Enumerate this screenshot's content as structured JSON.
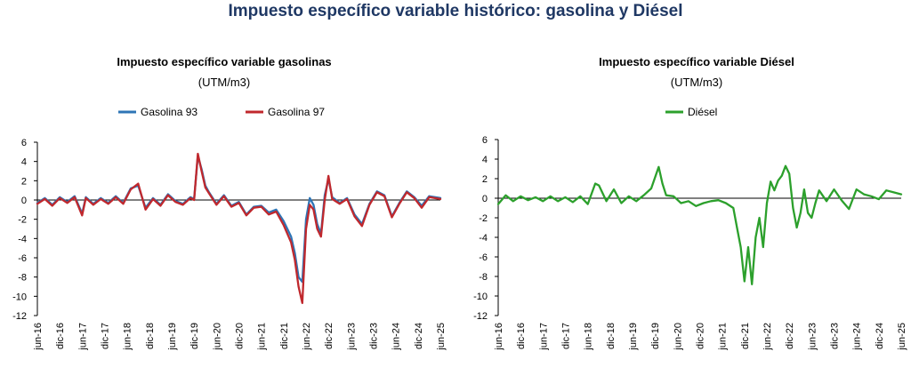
{
  "main_title": "Impuesto específico variable histórico: gasolina y Diésel",
  "colors": {
    "title": "#1f3864",
    "gasolina93": "#2e75b6",
    "gasolina97": "#c0282d",
    "diesel": "#2ca02c"
  },
  "chart_data": [
    {
      "type": "line",
      "title": "Impuesto específico variable gasolinas",
      "subtitle": "(UTM/m3)",
      "ylim": [
        -12,
        6
      ],
      "yticks": [
        6,
        4,
        2,
        0,
        -2,
        -4,
        -6,
        -8,
        -10,
        -12
      ],
      "x_range": [
        "2016-06",
        "2025-06"
      ],
      "xticks": [
        "jun-16",
        "dic-16",
        "jun-17",
        "dic-17",
        "jun-18",
        "dic-18",
        "jun-19",
        "dic-19",
        "jun-20",
        "dic-20",
        "jun-21",
        "dic-21",
        "jun-22",
        "dic-22",
        "jun-23",
        "dic-23",
        "jun-24",
        "dic-24",
        "jun-25"
      ],
      "legend": "top",
      "series": [
        {
          "name": "Gasolina 93",
          "color": "#2e75b6",
          "x": [
            "2016-06",
            "2016-08",
            "2016-10",
            "2016-12",
            "2017-02",
            "2017-04",
            "2017-06",
            "2017-07",
            "2017-09",
            "2017-11",
            "2018-01",
            "2018-03",
            "2018-05",
            "2018-07",
            "2018-09",
            "2018-11",
            "2019-01",
            "2019-03",
            "2019-05",
            "2019-07",
            "2019-09",
            "2019-11",
            "2019-12",
            "2020-01",
            "2020-02",
            "2020-03",
            "2020-04",
            "2020-06",
            "2020-08",
            "2020-10",
            "2020-12",
            "2021-02",
            "2021-04",
            "2021-06",
            "2021-08",
            "2021-10",
            "2021-12",
            "2022-02",
            "2022-03",
            "2022-04",
            "2022-05",
            "2022-06",
            "2022-07",
            "2022-08",
            "2022-09",
            "2022-10",
            "2022-11",
            "2022-12",
            "2023-01",
            "2023-03",
            "2023-05",
            "2023-07",
            "2023-09",
            "2023-11",
            "2024-01",
            "2024-03",
            "2024-05",
            "2024-07",
            "2024-09",
            "2024-11",
            "2025-01",
            "2025-03",
            "2025-06"
          ],
          "values": [
            -0.3,
            0.2,
            -0.5,
            0.3,
            -0.2,
            0.4,
            -1.4,
            0.3,
            -0.4,
            0.2,
            -0.3,
            0.4,
            -0.3,
            1.2,
            1.5,
            -0.8,
            0.2,
            -0.5,
            0.6,
            -0.1,
            -0.4,
            0.3,
            0.1,
            4.6,
            3.2,
            1.5,
            0.8,
            -0.4,
            0.5,
            -0.6,
            -0.2,
            -1.5,
            -0.7,
            -0.6,
            -1.3,
            -1.0,
            -2.2,
            -3.8,
            -5.5,
            -8.0,
            -8.5,
            -2.0,
            0.2,
            -0.5,
            -2.5,
            -3.5,
            0.5,
            2.2,
            0.3,
            -0.3,
            0.2,
            -1.5,
            -2.5,
            -0.4,
            0.9,
            0.5,
            -1.7,
            -0.3,
            0.9,
            0.3,
            -0.6,
            0.4,
            0.2
          ]
        },
        {
          "name": "Gasolina 97",
          "color": "#c0282d",
          "x": [
            "2016-06",
            "2016-08",
            "2016-10",
            "2016-12",
            "2017-02",
            "2017-04",
            "2017-06",
            "2017-07",
            "2017-09",
            "2017-11",
            "2018-01",
            "2018-03",
            "2018-05",
            "2018-07",
            "2018-09",
            "2018-11",
            "2019-01",
            "2019-03",
            "2019-05",
            "2019-07",
            "2019-09",
            "2019-11",
            "2019-12",
            "2020-01",
            "2020-02",
            "2020-03",
            "2020-04",
            "2020-06",
            "2020-08",
            "2020-10",
            "2020-12",
            "2021-02",
            "2021-04",
            "2021-06",
            "2021-08",
            "2021-10",
            "2021-12",
            "2022-02",
            "2022-03",
            "2022-04",
            "2022-05",
            "2022-06",
            "2022-07",
            "2022-08",
            "2022-09",
            "2022-10",
            "2022-11",
            "2022-12",
            "2023-01",
            "2023-03",
            "2023-05",
            "2023-07",
            "2023-09",
            "2023-11",
            "2024-01",
            "2024-03",
            "2024-05",
            "2024-07",
            "2024-09",
            "2024-11",
            "2025-01",
            "2025-03",
            "2025-06"
          ],
          "values": [
            -0.4,
            0.1,
            -0.6,
            0.2,
            -0.3,
            0.3,
            -1.6,
            0.2,
            -0.5,
            0.1,
            -0.4,
            0.3,
            -0.4,
            1.1,
            1.7,
            -1.0,
            0.1,
            -0.6,
            0.5,
            -0.2,
            -0.5,
            0.2,
            0.0,
            4.8,
            3.0,
            1.3,
            0.7,
            -0.5,
            0.4,
            -0.7,
            -0.3,
            -1.6,
            -0.8,
            -0.7,
            -1.5,
            -1.2,
            -2.6,
            -4.4,
            -6.2,
            -9.0,
            -10.7,
            -3.0,
            -0.5,
            -1.0,
            -3.0,
            -3.8,
            0.0,
            2.5,
            0.1,
            -0.4,
            0.1,
            -1.7,
            -2.7,
            -0.5,
            0.8,
            0.4,
            -1.8,
            -0.4,
            0.8,
            0.2,
            -0.8,
            0.3,
            0.1
          ]
        }
      ]
    },
    {
      "type": "line",
      "title": "Impuesto específico variable Diésel",
      "subtitle": "(UTM/m3)",
      "ylim": [
        -12,
        6
      ],
      "yticks": [
        6,
        4,
        2,
        0,
        -2,
        -4,
        -6,
        -8,
        -10,
        -12
      ],
      "x_range": [
        "2016-06",
        "2025-06"
      ],
      "xticks": [
        "jun-16",
        "dic-16",
        "jun-17",
        "dic-17",
        "jun-18",
        "dic-18",
        "jun-19",
        "dic-19",
        "jun-20",
        "dic-20",
        "jun-21",
        "dic-21",
        "jun-22",
        "dic-22",
        "jun-23",
        "dic-23",
        "jun-24",
        "dic-24",
        "jun-25"
      ],
      "legend": "top",
      "series": [
        {
          "name": "Diésel",
          "color": "#2ca02c",
          "x": [
            "2016-06",
            "2016-08",
            "2016-10",
            "2016-12",
            "2017-02",
            "2017-04",
            "2017-06",
            "2017-08",
            "2017-10",
            "2017-12",
            "2018-02",
            "2018-04",
            "2018-06",
            "2018-08",
            "2018-09",
            "2018-11",
            "2019-01",
            "2019-03",
            "2019-05",
            "2019-07",
            "2019-09",
            "2019-11",
            "2020-01",
            "2020-02",
            "2020-03",
            "2020-05",
            "2020-07",
            "2020-09",
            "2020-11",
            "2021-01",
            "2021-03",
            "2021-05",
            "2021-07",
            "2021-09",
            "2021-10",
            "2021-11",
            "2021-12",
            "2022-01",
            "2022-02",
            "2022-03",
            "2022-04",
            "2022-05",
            "2022-06",
            "2022-07",
            "2022-08",
            "2022-09",
            "2022-10",
            "2022-11",
            "2022-12",
            "2023-01",
            "2023-02",
            "2023-03",
            "2023-04",
            "2023-05",
            "2023-06",
            "2023-07",
            "2023-08",
            "2023-10",
            "2023-12",
            "2024-02",
            "2024-04",
            "2024-06",
            "2024-08",
            "2024-10",
            "2024-12",
            "2025-02",
            "2025-04",
            "2025-06"
          ],
          "values": [
            -0.6,
            0.3,
            -0.3,
            0.2,
            -0.2,
            0.1,
            -0.3,
            0.2,
            -0.3,
            0.1,
            -0.4,
            0.2,
            -0.6,
            1.5,
            1.3,
            -0.3,
            0.9,
            -0.5,
            0.2,
            -0.3,
            0.3,
            1.0,
            3.2,
            1.5,
            0.3,
            0.2,
            -0.5,
            -0.3,
            -0.8,
            -0.5,
            -0.3,
            -0.2,
            -0.5,
            -1.0,
            -3.0,
            -5.0,
            -8.5,
            -5.0,
            -8.8,
            -4.0,
            -2.0,
            -5.0,
            -0.5,
            1.7,
            0.8,
            1.8,
            2.3,
            3.3,
            2.5,
            -1.0,
            -3.0,
            -1.5,
            0.9,
            -1.5,
            -2.0,
            -0.5,
            0.8,
            -0.3,
            0.9,
            -0.2,
            -1.1,
            0.9,
            0.4,
            0.2,
            -0.1,
            0.8,
            0.6,
            0.4
          ]
        }
      ]
    }
  ]
}
